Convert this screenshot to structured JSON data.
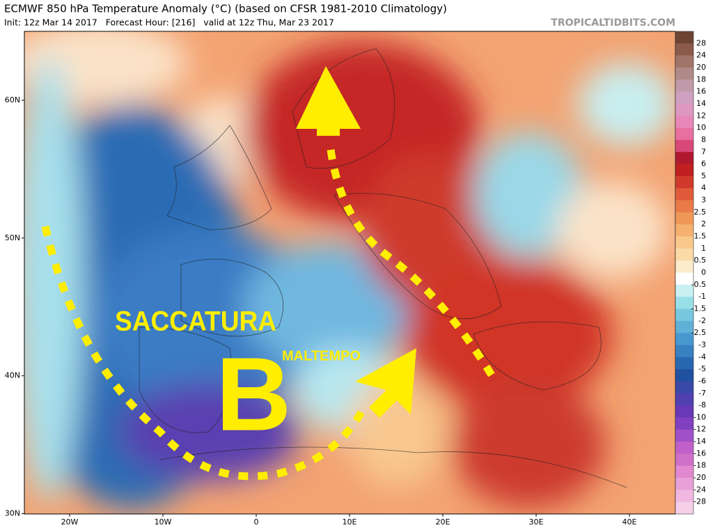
{
  "header": {
    "title": "ECMWF 850 hPa Temperature Anomaly (°C) (based on CFSR 1981-2010 Climatology)",
    "subtitle": "Init: 12z Mar 14 2017   Forecast Hour: [216]   valid at 12z Thu, Mar 23 2017",
    "source": "TROPICALTIDBITS.COM"
  },
  "map": {
    "latitude_labels": [
      "60N",
      "50N",
      "40N",
      "30N"
    ],
    "longitude_labels": [
      "20W",
      "10W",
      "0",
      "10E",
      "20E",
      "30E",
      "40E"
    ],
    "annotations": [
      "SACCATURA",
      "MALTEMPO",
      "B"
    ]
  },
  "colorbar": {
    "labels": [
      "28",
      "24",
      "20",
      "18",
      "16",
      "14",
      "12",
      "10",
      "8",
      "7",
      "6",
      "5",
      "4",
      "3",
      "2.5",
      "2",
      "1.5",
      "1",
      "0.5",
      "0",
      "-0.5",
      "-1",
      "-1.5",
      "-2",
      "-2.5",
      "-3",
      "-4",
      "-5",
      "-6",
      "-7",
      "-8",
      "-10",
      "-12",
      "-14",
      "-16",
      "-18",
      "-20",
      "-24",
      "-28"
    ],
    "colors": [
      "#6e4535",
      "#8a5a4a",
      "#a07468",
      "#b08a88",
      "#c09aa8",
      "#cfa0c0",
      "#dc98c0",
      "#e888b8",
      "#e870a0",
      "#d84878",
      "#b01830",
      "#c02020",
      "#d03a2a",
      "#e05a3a",
      "#ea7a48",
      "#f09858",
      "#f5b070",
      "#f8c88a",
      "#fadba8",
      "#fbeccc",
      "#ffffff",
      "#c8f0f0",
      "#98e0e8",
      "#78c8e0",
      "#60b0d8",
      "#4898d0",
      "#3880c0",
      "#2868b0",
      "#2050a0",
      "#3a48a8",
      "#5040b0",
      "#6838b8",
      "#8040c0",
      "#a050c8",
      "#c060c8",
      "#d070c8",
      "#e088d0",
      "#e8a0d8",
      "#f0b8e0",
      "#f5d0e8"
    ]
  }
}
